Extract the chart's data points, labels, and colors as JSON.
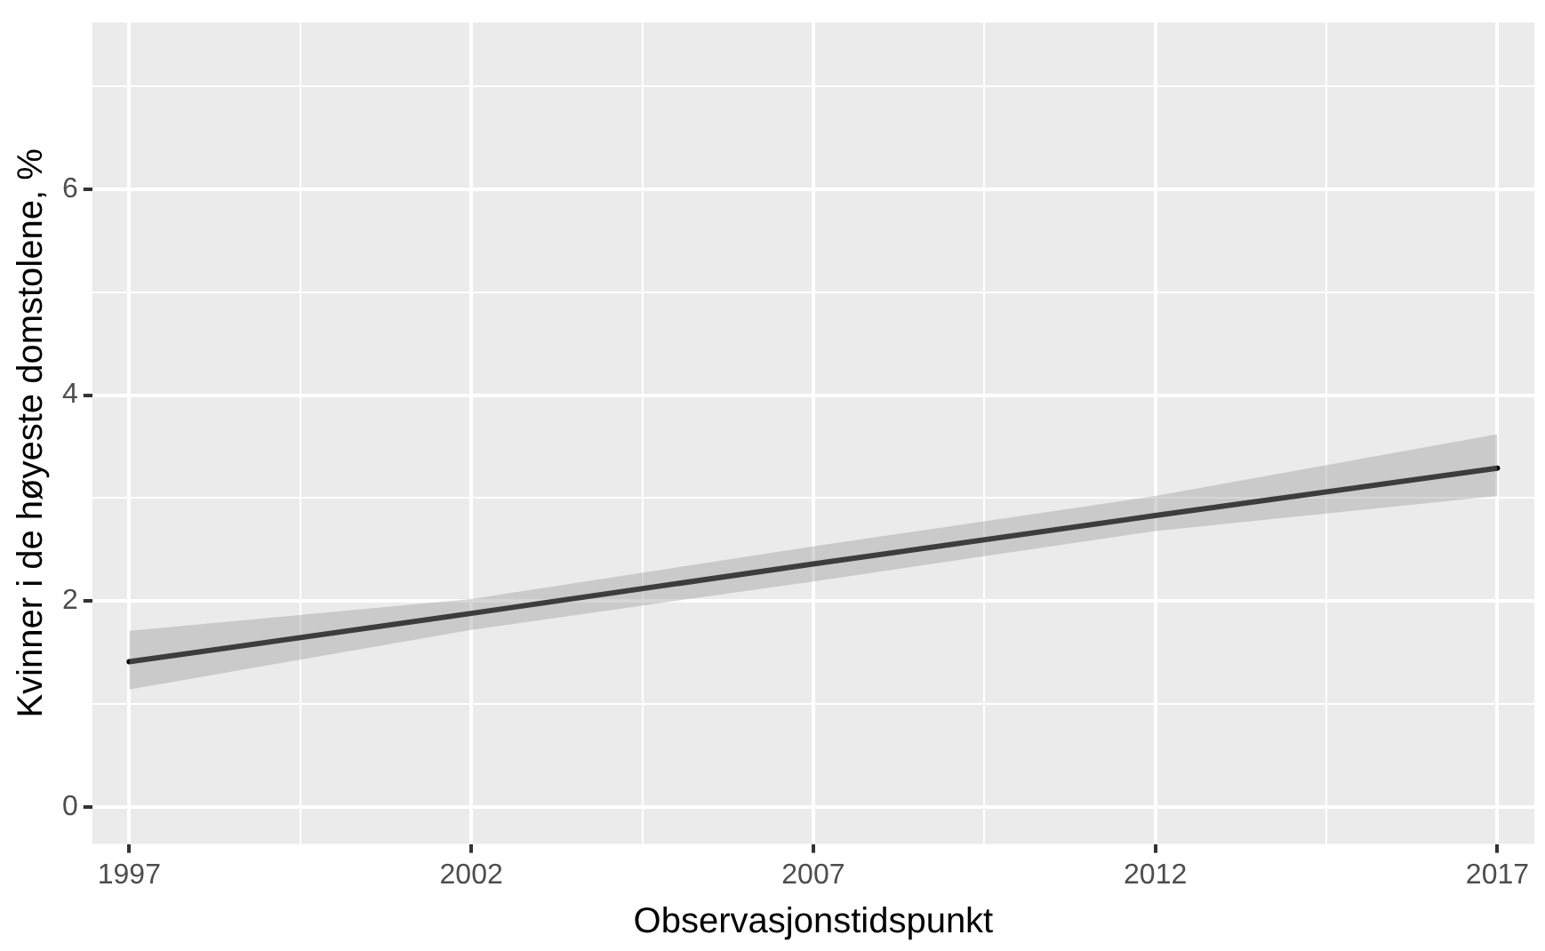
{
  "chart_data": {
    "type": "line",
    "xlabel": "Observasjonstidspunkt",
    "ylabel": "Kvinner i de høyeste domstolene, %",
    "x": [
      1997,
      2002,
      2007,
      2012,
      2017
    ],
    "series": [
      {
        "color": "#000000",
        "values": [
          1.41,
          1.88,
          2.36,
          2.83,
          3.29
        ],
        "lower": [
          1.14,
          1.72,
          2.19,
          2.68,
          3.02
        ],
        "upper": [
          1.71,
          2.02,
          2.53,
          3.02,
          3.62
        ]
      }
    ],
    "xlim": [
      1996.46,
      2017.54
    ],
    "xticks": [
      1997,
      {
        "value": 1999.5,
        "label": null
      },
      2002,
      {
        "value": 2004.5,
        "label": null
      },
      2007,
      {
        "value": 2009.5,
        "label": null
      },
      2012,
      {
        "value": 2014.5,
        "label": null
      },
      2017
    ],
    "ylim": [
      -0.36,
      7.62
    ],
    "yticks": [
      0,
      {
        "value": 1,
        "label": null
      },
      2,
      {
        "value": 3,
        "label": null
      },
      4,
      {
        "value": 5,
        "label": null
      },
      6,
      {
        "value": 7,
        "label": null
      }
    ],
    "grid": true,
    "legend": false,
    "marker": "none",
    "line_style": "solid"
  }
}
